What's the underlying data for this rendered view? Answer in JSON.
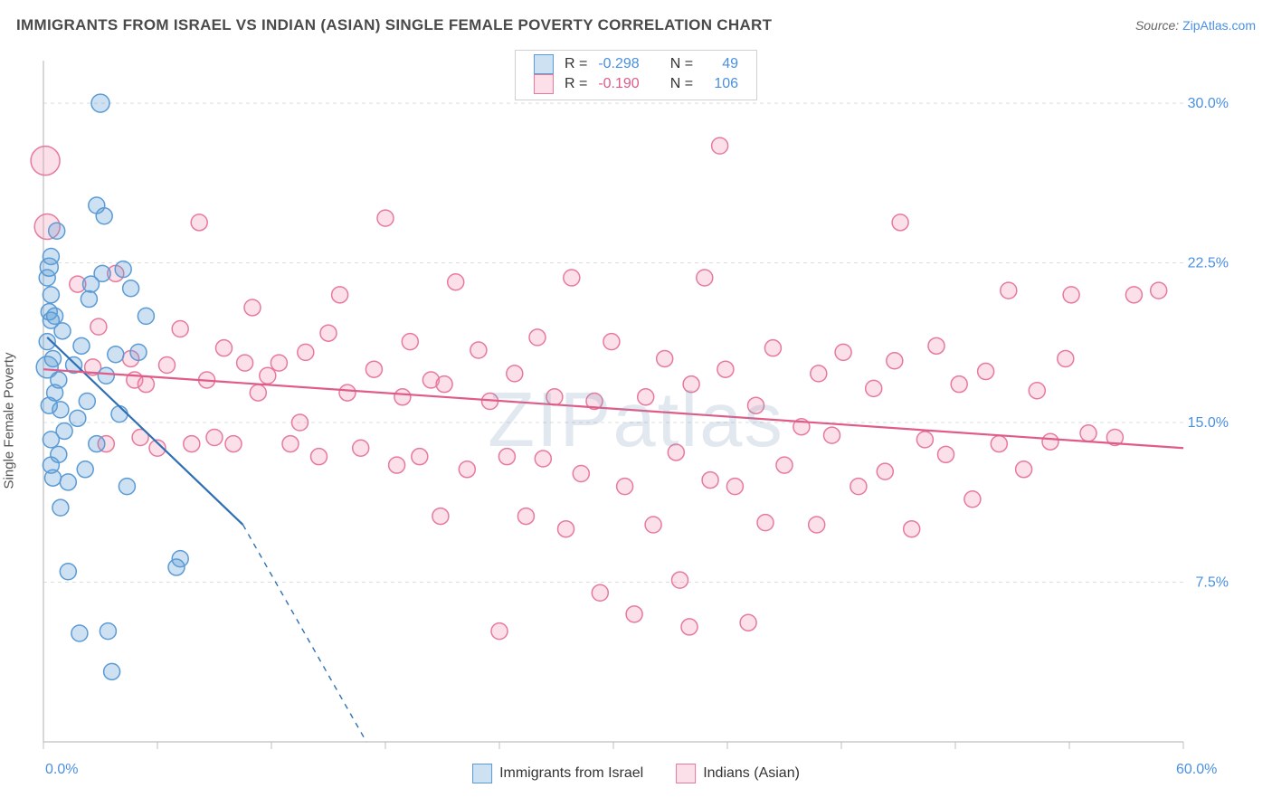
{
  "title": "IMMIGRANTS FROM ISRAEL VS INDIAN (ASIAN) SINGLE FEMALE POVERTY CORRELATION CHART",
  "source_label": "Source:",
  "source_value": "ZipAtlas.com",
  "watermark": "ZIPatlas",
  "y_axis": {
    "label": "Single Female Poverty"
  },
  "axes": {
    "x_min": 0,
    "x_max": 60,
    "y_min": 0,
    "y_max": 32,
    "x_corner_min": "0.0%",
    "x_corner_max": "60.0%",
    "y_ticks": [
      {
        "v": 7.5,
        "label": "7.5%"
      },
      {
        "v": 15.0,
        "label": "15.0%"
      },
      {
        "v": 22.5,
        "label": "22.5%"
      },
      {
        "v": 30.0,
        "label": "30.0%"
      }
    ],
    "x_ticks_minor": [
      0,
      6,
      12,
      18,
      24,
      30,
      36,
      42,
      48,
      54,
      60
    ]
  },
  "colors": {
    "blue_stroke": "#5b9bd5",
    "blue_fill": "rgba(91,155,213,0.30)",
    "blue_line": "#2f6fb3",
    "blue_text": "#4a90e2",
    "pink_stroke": "#e77a9c",
    "pink_fill": "rgba(241,145,178,0.28)",
    "pink_line": "#e05b87",
    "pink_text": "#e05b87",
    "grid": "#dcdcdc",
    "axis": "#bfbfbf",
    "bg": "#ffffff"
  },
  "stats_legend": {
    "rows": [
      {
        "series": "blue",
        "R": "-0.298",
        "N": "49"
      },
      {
        "series": "pink",
        "R": "-0.190",
        "N": "106"
      }
    ],
    "R_label": "R =",
    "N_label": "N ="
  },
  "series_legend": [
    {
      "series": "blue",
      "label": "Immigrants from Israel"
    },
    {
      "series": "pink",
      "label": "Indians (Asian)"
    }
  ],
  "trend_lines": {
    "blue": {
      "x1": 0.2,
      "y1": 19.0,
      "x2": 10.5,
      "y2": 10.2,
      "ext_x2": 17.0,
      "ext_y2": 0.0
    },
    "pink": {
      "x1": 0.0,
      "y1": 17.5,
      "x2": 60.0,
      "y2": 13.8
    }
  },
  "point_radius": 9,
  "blue_points": [
    {
      "x": 0.3,
      "y": 22.3,
      "r": 10
    },
    {
      "x": 0.2,
      "y": 21.8,
      "r": 9
    },
    {
      "x": 0.4,
      "y": 22.8,
      "r": 9
    },
    {
      "x": 0.2,
      "y": 17.6,
      "r": 12
    },
    {
      "x": 0.4,
      "y": 19.8,
      "r": 9
    },
    {
      "x": 0.4,
      "y": 21.0,
      "r": 9
    },
    {
      "x": 0.6,
      "y": 20.0,
      "r": 9
    },
    {
      "x": 0.8,
      "y": 17.0,
      "r": 9
    },
    {
      "x": 0.3,
      "y": 15.8,
      "r": 9
    },
    {
      "x": 0.6,
      "y": 16.4,
      "r": 9
    },
    {
      "x": 0.9,
      "y": 15.6,
      "r": 9
    },
    {
      "x": 0.4,
      "y": 14.2,
      "r": 9
    },
    {
      "x": 0.8,
      "y": 13.5,
      "r": 9
    },
    {
      "x": 1.1,
      "y": 14.6,
      "r": 9
    },
    {
      "x": 0.5,
      "y": 12.4,
      "r": 9
    },
    {
      "x": 1.3,
      "y": 12.2,
      "r": 9
    },
    {
      "x": 0.9,
      "y": 11.0,
      "r": 9
    },
    {
      "x": 1.6,
      "y": 17.7,
      "r": 9
    },
    {
      "x": 2.0,
      "y": 18.6,
      "r": 9
    },
    {
      "x": 2.4,
      "y": 20.8,
      "r": 9
    },
    {
      "x": 2.8,
      "y": 25.2,
      "r": 9
    },
    {
      "x": 3.2,
      "y": 24.7,
      "r": 9
    },
    {
      "x": 2.5,
      "y": 21.5,
      "r": 9
    },
    {
      "x": 3.1,
      "y": 22.0,
      "r": 9
    },
    {
      "x": 2.8,
      "y": 14.0,
      "r": 9
    },
    {
      "x": 2.2,
      "y": 12.8,
      "r": 9
    },
    {
      "x": 3.3,
      "y": 17.2,
      "r": 9
    },
    {
      "x": 3.8,
      "y": 18.2,
      "r": 9
    },
    {
      "x": 4.2,
      "y": 22.2,
      "r": 9
    },
    {
      "x": 4.6,
      "y": 21.3,
      "r": 9
    },
    {
      "x": 4.0,
      "y": 15.4,
      "r": 9
    },
    {
      "x": 5.0,
      "y": 18.3,
      "r": 9
    },
    {
      "x": 5.4,
      "y": 20.0,
      "r": 9
    },
    {
      "x": 3.0,
      "y": 30.0,
      "r": 10
    },
    {
      "x": 0.7,
      "y": 24.0,
      "r": 9
    },
    {
      "x": 1.3,
      "y": 8.0,
      "r": 9
    },
    {
      "x": 3.4,
      "y": 5.2,
      "r": 9
    },
    {
      "x": 1.9,
      "y": 5.1,
      "r": 9
    },
    {
      "x": 3.6,
      "y": 3.3,
      "r": 9
    },
    {
      "x": 7.0,
      "y": 8.2,
      "r": 9
    },
    {
      "x": 7.2,
      "y": 8.6,
      "r": 9
    },
    {
      "x": 4.4,
      "y": 12.0,
      "r": 9
    },
    {
      "x": 0.2,
      "y": 18.8,
      "r": 9
    },
    {
      "x": 0.3,
      "y": 20.2,
      "r": 9
    },
    {
      "x": 0.5,
      "y": 18.0,
      "r": 9
    },
    {
      "x": 1.8,
      "y": 15.2,
      "r": 9
    },
    {
      "x": 2.3,
      "y": 16.0,
      "r": 9
    },
    {
      "x": 0.4,
      "y": 13.0,
      "r": 9
    },
    {
      "x": 1.0,
      "y": 19.3,
      "r": 9
    }
  ],
  "pink_points": [
    {
      "x": 0.1,
      "y": 27.3,
      "r": 16
    },
    {
      "x": 0.2,
      "y": 24.2,
      "r": 14
    },
    {
      "x": 1.8,
      "y": 21.5,
      "r": 9
    },
    {
      "x": 2.6,
      "y": 17.6,
      "r": 9
    },
    {
      "x": 2.9,
      "y": 19.5,
      "r": 9
    },
    {
      "x": 3.3,
      "y": 14.0,
      "r": 9
    },
    {
      "x": 3.8,
      "y": 22.0,
      "r": 9
    },
    {
      "x": 4.6,
      "y": 18.0,
      "r": 9
    },
    {
      "x": 4.8,
      "y": 17.0,
      "r": 9
    },
    {
      "x": 5.4,
      "y": 16.8,
      "r": 9
    },
    {
      "x": 5.1,
      "y": 14.3,
      "r": 9
    },
    {
      "x": 6.0,
      "y": 13.8,
      "r": 9
    },
    {
      "x": 6.5,
      "y": 17.7,
      "r": 9
    },
    {
      "x": 7.2,
      "y": 19.4,
      "r": 9
    },
    {
      "x": 7.8,
      "y": 14.0,
      "r": 9
    },
    {
      "x": 8.2,
      "y": 24.4,
      "r": 9
    },
    {
      "x": 8.6,
      "y": 17.0,
      "r": 9
    },
    {
      "x": 9.0,
      "y": 14.3,
      "r": 9
    },
    {
      "x": 9.5,
      "y": 18.5,
      "r": 9
    },
    {
      "x": 10.0,
      "y": 14.0,
      "r": 9
    },
    {
      "x": 10.6,
      "y": 17.8,
      "r": 9
    },
    {
      "x": 11.0,
      "y": 20.4,
      "r": 9
    },
    {
      "x": 11.3,
      "y": 16.4,
      "r": 9
    },
    {
      "x": 11.8,
      "y": 17.2,
      "r": 9
    },
    {
      "x": 12.4,
      "y": 17.8,
      "r": 9
    },
    {
      "x": 13.0,
      "y": 14.0,
      "r": 9
    },
    {
      "x": 13.5,
      "y": 15.0,
      "r": 9
    },
    {
      "x": 13.8,
      "y": 18.3,
      "r": 9
    },
    {
      "x": 14.5,
      "y": 13.4,
      "r": 9
    },
    {
      "x": 15.0,
      "y": 19.2,
      "r": 9
    },
    {
      "x": 15.6,
      "y": 21.0,
      "r": 9
    },
    {
      "x": 16.0,
      "y": 16.4,
      "r": 9
    },
    {
      "x": 16.7,
      "y": 13.8,
      "r": 9
    },
    {
      "x": 17.4,
      "y": 17.5,
      "r": 9
    },
    {
      "x": 18.0,
      "y": 24.6,
      "r": 9
    },
    {
      "x": 18.6,
      "y": 13.0,
      "r": 9
    },
    {
      "x": 18.9,
      "y": 16.2,
      "r": 9
    },
    {
      "x": 19.3,
      "y": 18.8,
      "r": 9
    },
    {
      "x": 19.8,
      "y": 13.4,
      "r": 9
    },
    {
      "x": 20.4,
      "y": 17.0,
      "r": 9
    },
    {
      "x": 20.9,
      "y": 10.6,
      "r": 9
    },
    {
      "x": 21.1,
      "y": 16.8,
      "r": 9
    },
    {
      "x": 21.7,
      "y": 21.6,
      "r": 9
    },
    {
      "x": 22.3,
      "y": 12.8,
      "r": 9
    },
    {
      "x": 22.9,
      "y": 18.4,
      "r": 9
    },
    {
      "x": 23.5,
      "y": 16.0,
      "r": 9
    },
    {
      "x": 24.0,
      "y": 5.2,
      "r": 9
    },
    {
      "x": 24.4,
      "y": 13.4,
      "r": 9
    },
    {
      "x": 24.8,
      "y": 17.3,
      "r": 9
    },
    {
      "x": 25.4,
      "y": 10.6,
      "r": 9
    },
    {
      "x": 26.0,
      "y": 19.0,
      "r": 9
    },
    {
      "x": 26.3,
      "y": 13.3,
      "r": 9
    },
    {
      "x": 26.9,
      "y": 16.2,
      "r": 9
    },
    {
      "x": 27.5,
      "y": 10.0,
      "r": 9
    },
    {
      "x": 27.8,
      "y": 21.8,
      "r": 9
    },
    {
      "x": 28.3,
      "y": 12.6,
      "r": 9
    },
    {
      "x": 29.0,
      "y": 16.0,
      "r": 9
    },
    {
      "x": 29.3,
      "y": 7.0,
      "r": 9
    },
    {
      "x": 29.9,
      "y": 18.8,
      "r": 9
    },
    {
      "x": 30.6,
      "y": 12.0,
      "r": 9
    },
    {
      "x": 31.1,
      "y": 6.0,
      "r": 9
    },
    {
      "x": 31.7,
      "y": 16.2,
      "r": 9
    },
    {
      "x": 32.1,
      "y": 10.2,
      "r": 9
    },
    {
      "x": 32.7,
      "y": 18.0,
      "r": 9
    },
    {
      "x": 33.3,
      "y": 13.6,
      "r": 9
    },
    {
      "x": 33.5,
      "y": 7.6,
      "r": 9
    },
    {
      "x": 34.1,
      "y": 16.8,
      "r": 9
    },
    {
      "x": 34.8,
      "y": 21.8,
      "r": 9
    },
    {
      "x": 35.1,
      "y": 12.3,
      "r": 9
    },
    {
      "x": 35.6,
      "y": 28.0,
      "r": 9
    },
    {
      "x": 35.9,
      "y": 17.5,
      "r": 9
    },
    {
      "x": 36.4,
      "y": 12.0,
      "r": 9
    },
    {
      "x": 37.1,
      "y": 5.6,
      "r": 9
    },
    {
      "x": 37.5,
      "y": 15.8,
      "r": 9
    },
    {
      "x": 38.0,
      "y": 10.3,
      "r": 9
    },
    {
      "x": 38.4,
      "y": 18.5,
      "r": 9
    },
    {
      "x": 39.0,
      "y": 13.0,
      "r": 9
    },
    {
      "x": 39.9,
      "y": 14.8,
      "r": 9
    },
    {
      "x": 40.8,
      "y": 17.3,
      "r": 9
    },
    {
      "x": 40.7,
      "y": 10.2,
      "r": 9
    },
    {
      "x": 41.5,
      "y": 14.4,
      "r": 9
    },
    {
      "x": 42.1,
      "y": 18.3,
      "r": 9
    },
    {
      "x": 42.9,
      "y": 12.0,
      "r": 9
    },
    {
      "x": 43.7,
      "y": 16.6,
      "r": 9
    },
    {
      "x": 44.3,
      "y": 12.7,
      "r": 9
    },
    {
      "x": 44.8,
      "y": 17.9,
      "r": 9
    },
    {
      "x": 45.1,
      "y": 24.4,
      "r": 9
    },
    {
      "x": 45.7,
      "y": 10.0,
      "r": 9
    },
    {
      "x": 46.4,
      "y": 14.2,
      "r": 9
    },
    {
      "x": 47.0,
      "y": 18.6,
      "r": 9
    },
    {
      "x": 47.5,
      "y": 13.5,
      "r": 9
    },
    {
      "x": 48.2,
      "y": 16.8,
      "r": 9
    },
    {
      "x": 48.9,
      "y": 11.4,
      "r": 9
    },
    {
      "x": 49.6,
      "y": 17.4,
      "r": 9
    },
    {
      "x": 50.3,
      "y": 14.0,
      "r": 9
    },
    {
      "x": 50.8,
      "y": 21.2,
      "r": 9
    },
    {
      "x": 51.6,
      "y": 12.8,
      "r": 9
    },
    {
      "x": 52.3,
      "y": 16.5,
      "r": 9
    },
    {
      "x": 53.0,
      "y": 14.1,
      "r": 9
    },
    {
      "x": 53.8,
      "y": 18.0,
      "r": 9
    },
    {
      "x": 54.1,
      "y": 21.0,
      "r": 9
    },
    {
      "x": 55.0,
      "y": 14.5,
      "r": 9
    },
    {
      "x": 56.4,
      "y": 14.3,
      "r": 9
    },
    {
      "x": 57.4,
      "y": 21.0,
      "r": 9
    },
    {
      "x": 58.7,
      "y": 21.2,
      "r": 9
    },
    {
      "x": 34.0,
      "y": 5.4,
      "r": 9
    }
  ]
}
